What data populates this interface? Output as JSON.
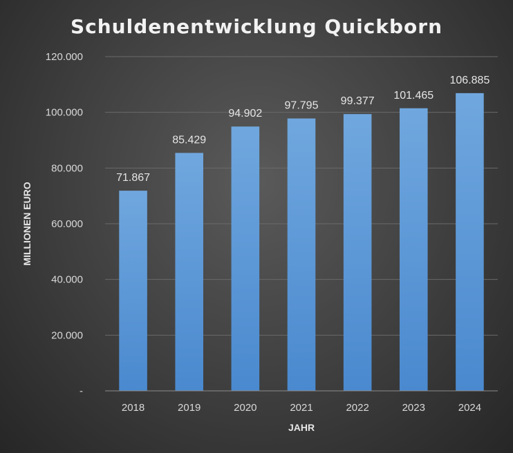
{
  "chart_data": {
    "type": "bar",
    "title": "Schuldenentwicklung Quickborn",
    "xlabel": "JAHR",
    "ylabel": "MILLIONEN EURO",
    "categories": [
      "2018",
      "2019",
      "2020",
      "2021",
      "2022",
      "2023",
      "2024"
    ],
    "values": [
      71867,
      85429,
      94902,
      97795,
      99377,
      101465,
      106885
    ],
    "data_labels": [
      "71.867",
      "85.429",
      "94.902",
      "97.795",
      "99.377",
      "101.465",
      "106.885"
    ],
    "ylim": [
      0,
      120000
    ],
    "y_ticks": [
      0,
      20000,
      40000,
      60000,
      80000,
      100000,
      120000
    ],
    "y_tick_labels": [
      "-",
      "20.000",
      "40.000",
      "60.000",
      "80.000",
      "100.000",
      "120.000"
    ],
    "grid": true,
    "legend": "none",
    "bar_color": "#5b9bd5",
    "bar_color_light": "#6fa8dc",
    "background_color": "#404040"
  }
}
